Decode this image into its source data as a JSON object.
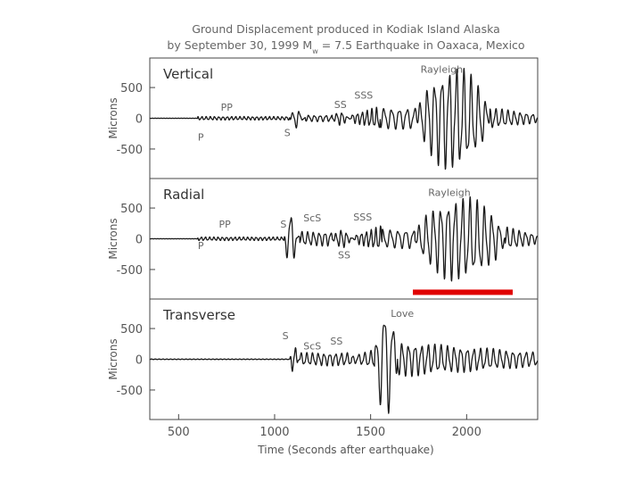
{
  "chart_data": {
    "type": "line",
    "title_line1": "Ground Displacement produced in Kodiak Island Alaska",
    "title_line2_prefix": "by September 30, 1999 M",
    "title_line2_sub": "w",
    "title_line2_suffix": " = 7.5 Earthquake in Oaxaca, Mexico",
    "xlabel": "Time (Seconds after earthquake)",
    "xlim": [
      350,
      2370
    ],
    "x_ticks": [
      500,
      1000,
      1500,
      2000
    ],
    "colors": {
      "trace": "#1a1a1a",
      "highlight": "#e00000",
      "frame": "#444444"
    },
    "highlight_bar": {
      "panel": 1,
      "x_start": 1720,
      "x_end": 2240,
      "y": -870
    },
    "panels": [
      {
        "label": "Vertical",
        "ylabel": "Microns",
        "ylim": [
          -980,
          980
        ],
        "y_ticks": [
          500,
          0,
          -500
        ],
        "phases": [
          {
            "text": "P",
            "x": 600,
            "y": -360
          },
          {
            "text": "PP",
            "x": 720,
            "y": 120
          },
          {
            "text": "S",
            "x": 1050,
            "y": -290
          },
          {
            "text": "SS",
            "x": 1310,
            "y": 170
          },
          {
            "text": "SSS",
            "x": 1415,
            "y": 320
          },
          {
            "text": "Rayleigh",
            "x": 1760,
            "y": 740
          }
        ],
        "segments": [
          {
            "t0": 350,
            "t1": 600,
            "amp": 2,
            "per": 15,
            "env": "flat"
          },
          {
            "t0": 600,
            "t1": 1080,
            "amp": 30,
            "per": 22,
            "env": "flat"
          },
          {
            "t0": 1080,
            "t1": 1160,
            "amp": 170,
            "per": 35,
            "env": "burst"
          },
          {
            "t0": 1160,
            "t1": 1300,
            "amp": 55,
            "per": 30,
            "env": "flat"
          },
          {
            "t0": 1300,
            "t1": 1400,
            "amp": 120,
            "per": 28,
            "env": "burst"
          },
          {
            "t0": 1400,
            "t1": 1550,
            "amp": 200,
            "per": 25,
            "env": "grow"
          },
          {
            "t0": 1550,
            "t1": 1740,
            "amp": 180,
            "per": 40,
            "env": "flat"
          },
          {
            "t0": 1740,
            "t1": 2120,
            "amp": 880,
            "per": 38,
            "env": "hump"
          },
          {
            "t0": 2120,
            "t1": 2370,
            "amp": 180,
            "per": 32,
            "env": "decay"
          }
        ]
      },
      {
        "label": "Radial",
        "ylabel": "Microns",
        "ylim": [
          -980,
          980
        ],
        "y_ticks": [
          500,
          0,
          -500
        ],
        "phases": [
          {
            "text": "P",
            "x": 600,
            "y": -170
          },
          {
            "text": "PP",
            "x": 710,
            "y": 180
          },
          {
            "text": "S",
            "x": 1030,
            "y": 180
          },
          {
            "text": "ScS",
            "x": 1150,
            "y": 280
          },
          {
            "text": "SS",
            "x": 1330,
            "y": -320
          },
          {
            "text": "SSS",
            "x": 1410,
            "y": 300
          },
          {
            "text": "Rayleigh",
            "x": 1800,
            "y": 700
          }
        ],
        "segments": [
          {
            "t0": 350,
            "t1": 600,
            "amp": 2,
            "per": 15,
            "env": "flat"
          },
          {
            "t0": 600,
            "t1": 1050,
            "amp": 30,
            "per": 22,
            "env": "flat"
          },
          {
            "t0": 1050,
            "t1": 1130,
            "amp": 480,
            "per": 40,
            "env": "burst"
          },
          {
            "t0": 1130,
            "t1": 1300,
            "amp": 120,
            "per": 30,
            "env": "flat"
          },
          {
            "t0": 1300,
            "t1": 1420,
            "amp": 160,
            "per": 28,
            "env": "burst"
          },
          {
            "t0": 1420,
            "t1": 1560,
            "amp": 220,
            "per": 25,
            "env": "grow"
          },
          {
            "t0": 1560,
            "t1": 1730,
            "amp": 160,
            "per": 40,
            "env": "flat"
          },
          {
            "t0": 1730,
            "t1": 2200,
            "amp": 720,
            "per": 38,
            "env": "hump"
          },
          {
            "t0": 2200,
            "t1": 2370,
            "amp": 200,
            "per": 32,
            "env": "decay"
          }
        ]
      },
      {
        "label": "Transverse",
        "ylabel": "Microns",
        "ylim": [
          -980,
          980
        ],
        "y_ticks": [
          500,
          0,
          -500
        ],
        "phases": [
          {
            "text": "S",
            "x": 1040,
            "y": 330
          },
          {
            "text": "ScS",
            "x": 1150,
            "y": 160
          },
          {
            "text": "SS",
            "x": 1290,
            "y": 240
          },
          {
            "text": "Love",
            "x": 1605,
            "y": 690
          }
        ],
        "segments": [
          {
            "t0": 350,
            "t1": 1080,
            "amp": 5,
            "per": 20,
            "env": "flat"
          },
          {
            "t0": 1080,
            "t1": 1130,
            "amp": 260,
            "per": 30,
            "env": "burst"
          },
          {
            "t0": 1130,
            "t1": 1400,
            "amp": 110,
            "per": 30,
            "env": "flat"
          },
          {
            "t0": 1400,
            "t1": 1520,
            "amp": 160,
            "per": 32,
            "env": "grow"
          },
          {
            "t0": 1520,
            "t1": 1640,
            "amp": 920,
            "per": 45,
            "env": "hump"
          },
          {
            "t0": 1640,
            "t1": 2370,
            "amp": 300,
            "per": 34,
            "env": "decay"
          }
        ]
      }
    ]
  }
}
